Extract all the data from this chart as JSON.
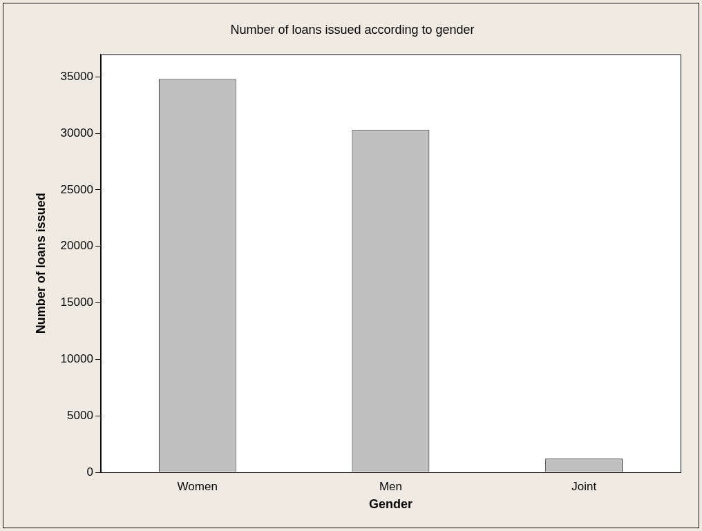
{
  "chart_data": {
    "type": "bar",
    "title": "Number of loans issued according to gender",
    "xlabel": "Gender",
    "ylabel": "Number of loans issued",
    "categories": [
      "Women",
      "Men",
      "Joint"
    ],
    "values": [
      34800,
      30300,
      1200
    ],
    "color": "#c0c0c0",
    "ylim": [
      0,
      37000
    ],
    "yticks": [
      0,
      5000,
      10000,
      15000,
      20000,
      25000,
      30000,
      35000
    ],
    "grid": false,
    "legend": false
  }
}
